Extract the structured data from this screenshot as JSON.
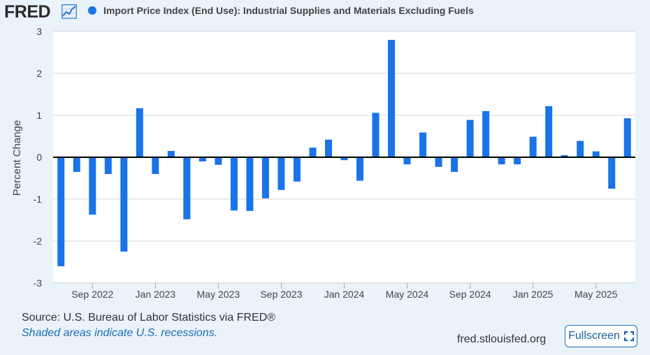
{
  "header": {
    "logo_text": "FRED",
    "legend_label": "Import Price Index (End Use): Industrial Supplies and Materials Excluding Fuels"
  },
  "footer": {
    "source": "Source: U.S. Bureau of Labor Statistics via FRED®",
    "recession_note": "Shaded areas indicate U.S. recessions.",
    "site": "fred.stlouisfed.org",
    "fullscreen_label": "Fullscreen"
  },
  "colors": {
    "bar": "#1a73e8",
    "zero_line": "#000000",
    "grid": "#d6d6d6"
  },
  "chart_data": {
    "type": "bar",
    "ylabel": "Percent Change",
    "ylim": [
      -3,
      3
    ],
    "yticks": [
      3,
      2,
      1,
      0,
      -1,
      -2,
      -3
    ],
    "xtick_labels": [
      "Sep 2022",
      "Jan 2023",
      "May 2023",
      "Sep 2023",
      "Jan 2024",
      "May 2024",
      "Sep 2024",
      "Jan 2025",
      "May 2025"
    ],
    "xtick_start_index": 2,
    "xtick_step": 4,
    "grid": true,
    "categories": [
      "2022-07",
      "2022-08",
      "2022-09",
      "2022-10",
      "2022-11",
      "2022-12",
      "2023-01",
      "2023-02",
      "2023-03",
      "2023-04",
      "2023-05",
      "2023-06",
      "2023-07",
      "2023-08",
      "2023-09",
      "2023-10",
      "2023-11",
      "2023-12",
      "2024-01",
      "2024-02",
      "2024-03",
      "2024-04",
      "2024-05",
      "2024-06",
      "2024-07",
      "2024-08",
      "2024-09",
      "2024-10",
      "2024-11",
      "2024-12",
      "2025-01",
      "2025-02",
      "2025-03",
      "2025-04",
      "2025-05",
      "2025-06",
      "2025-07"
    ],
    "values": [
      -2.6,
      -0.35,
      -1.37,
      -0.4,
      -2.25,
      1.17,
      -0.4,
      0.15,
      -1.48,
      -0.1,
      -0.18,
      -1.27,
      -1.28,
      -0.98,
      -0.78,
      -0.58,
      0.23,
      0.42,
      -0.07,
      -0.56,
      1.06,
      2.8,
      -0.17,
      0.59,
      -0.23,
      -0.35,
      0.89,
      1.1,
      -0.17,
      -0.17,
      0.49,
      1.22,
      0.05,
      0.39,
      0.14,
      -0.75,
      0.93
    ]
  }
}
